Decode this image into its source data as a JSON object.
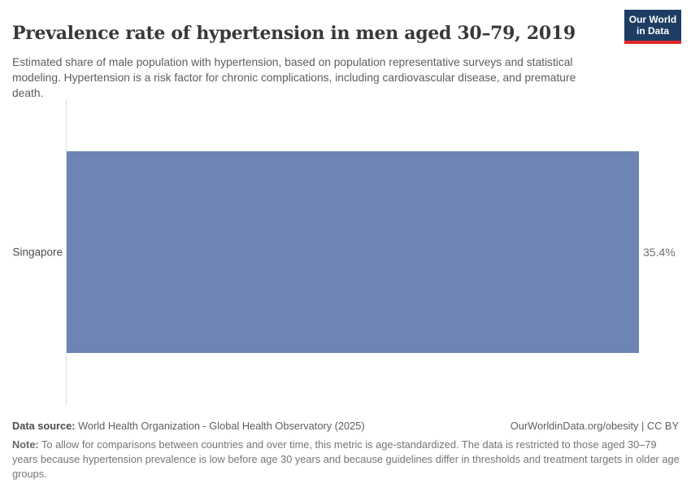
{
  "header": {
    "title": "Prevalence rate of hypertension in men aged 30–79, 2019",
    "subtitle": "Estimated share of male population with hypertension, based on population representative surveys and statistical modeling. Hypertension is a risk factor for chronic complications, including cardiovascular disease, and premature death.",
    "logo": {
      "line1": "Our World",
      "line2": "in Data",
      "background_color": "#1d3d63",
      "underline_color": "#e0262c"
    }
  },
  "chart_data": {
    "type": "bar",
    "orientation": "horizontal",
    "title": "Prevalence rate of hypertension in men aged 30–79, 2019",
    "categories": [
      "Singapore"
    ],
    "values": [
      35.4
    ],
    "value_labels": [
      "35.4%"
    ],
    "unit": "%",
    "xlabel": "",
    "ylabel": "",
    "xlim": [
      0,
      35.4
    ],
    "grid": false,
    "legend": false,
    "bar_color": "#6e84b2"
  },
  "footer": {
    "datasource_label": "Data source:",
    "datasource_text": " World Health Organization - Global Health Observatory (2025)",
    "attribution": "OurWorldinData.org/obesity | CC BY",
    "note_label": "Note:",
    "note_text": " To allow for comparisons between countries and over time, this metric is age-standardized. The data is restricted to those aged 30–79 years because hypertension prevalence is low before age 30 years and because guidelines differ in thresholds and treatment targets in older age groups."
  }
}
